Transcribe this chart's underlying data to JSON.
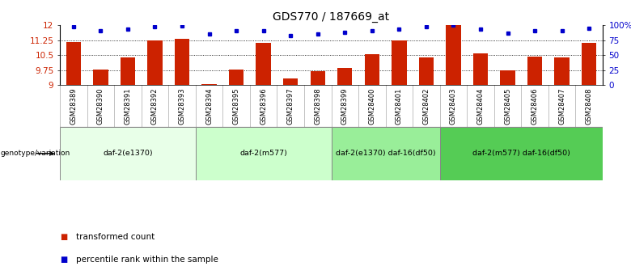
{
  "title": "GDS770 / 187669_at",
  "samples": [
    "GSM28389",
    "GSM28390",
    "GSM28391",
    "GSM28392",
    "GSM28393",
    "GSM28394",
    "GSM28395",
    "GSM28396",
    "GSM28397",
    "GSM28398",
    "GSM28399",
    "GSM28400",
    "GSM28401",
    "GSM28402",
    "GSM28403",
    "GSM28404",
    "GSM28405",
    "GSM28406",
    "GSM28407",
    "GSM28408"
  ],
  "bar_values": [
    11.15,
    9.78,
    10.38,
    11.22,
    11.32,
    9.05,
    9.78,
    11.12,
    9.35,
    9.7,
    9.85,
    10.55,
    11.25,
    10.37,
    12.0,
    10.6,
    9.72,
    10.42,
    10.37,
    11.12
  ],
  "dot_values": [
    97,
    91,
    93,
    97,
    99,
    85,
    90,
    91,
    83,
    85,
    88,
    91,
    93,
    97,
    100,
    93,
    86,
    91,
    91,
    95
  ],
  "ylim_left": [
    9.0,
    12.0
  ],
  "ylim_right": [
    0,
    100
  ],
  "yticks_left": [
    9.0,
    9.75,
    10.5,
    11.25,
    12.0
  ],
  "yticks_right": [
    0,
    25,
    50,
    75,
    100
  ],
  "ytick_labels_left": [
    "9",
    "9.75",
    "10.5",
    "11.25",
    "12"
  ],
  "ytick_labels_right": [
    "0",
    "25",
    "50",
    "75",
    "100%"
  ],
  "hlines": [
    9.75,
    10.5,
    11.25
  ],
  "bar_color": "#cc2200",
  "dot_color": "#0000cc",
  "groups": [
    {
      "label": "daf-2(e1370)",
      "start": 0,
      "end": 5,
      "color": "#e8ffe8"
    },
    {
      "label": "daf-2(m577)",
      "start": 5,
      "end": 10,
      "color": "#ccffcc"
    },
    {
      "label": "daf-2(e1370) daf-16(df50)",
      "start": 10,
      "end": 14,
      "color": "#99ee99"
    },
    {
      "label": "daf-2(m577) daf-16(df50)",
      "start": 14,
      "end": 20,
      "color": "#55cc55"
    }
  ],
  "genotype_label": "genotype/variation",
  "legend_bar_label": "transformed count",
  "legend_dot_label": "percentile rank within the sample",
  "background_color": "#ffffff",
  "tick_label_color_left": "#cc2200",
  "tick_label_color_right": "#0000cc",
  "title_fontsize": 10,
  "bar_width": 0.55,
  "sample_bg_color": "#d8d8d8",
  "sample_border_color": "#aaaaaa"
}
